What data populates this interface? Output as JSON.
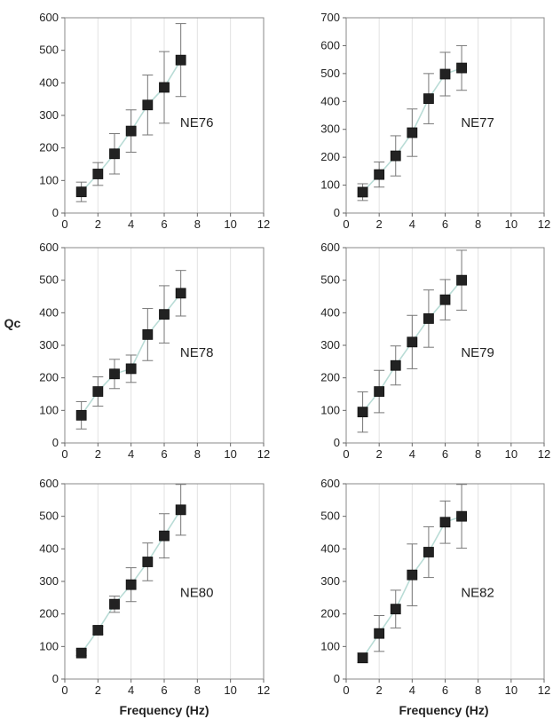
{
  "y_axis_label": "Qc",
  "x_axis_label": "Frequency  (Hz)",
  "chart_data": [
    {
      "type": "scatter",
      "label": "NE76",
      "xlim": [
        0,
        12
      ],
      "ylim": [
        0,
        600
      ],
      "xticks": [
        0,
        2,
        4,
        6,
        8,
        10,
        12
      ],
      "yticks": [
        0,
        100,
        200,
        300,
        400,
        500,
        600
      ],
      "x": [
        1,
        2,
        3,
        4,
        5,
        6,
        7
      ],
      "y": [
        65,
        120,
        182,
        252,
        332,
        386,
        470
      ],
      "err": [
        30,
        35,
        62,
        65,
        92,
        110,
        112
      ]
    },
    {
      "type": "scatter",
      "label": "NE77",
      "xlim": [
        0,
        12
      ],
      "ylim": [
        0,
        700
      ],
      "xticks": [
        0,
        2,
        4,
        6,
        8,
        10,
        12
      ],
      "yticks": [
        0,
        100,
        200,
        300,
        400,
        500,
        600,
        700
      ],
      "x": [
        1,
        2,
        3,
        4,
        5,
        6,
        7
      ],
      "y": [
        75,
        138,
        205,
        288,
        410,
        498,
        520
      ],
      "err": [
        30,
        45,
        72,
        85,
        90,
        78,
        80
      ]
    },
    {
      "type": "scatter",
      "label": "NE78",
      "xlim": [
        0,
        12
      ],
      "ylim": [
        0,
        600
      ],
      "xticks": [
        0,
        2,
        4,
        6,
        8,
        10,
        12
      ],
      "yticks": [
        0,
        100,
        200,
        300,
        400,
        500,
        600
      ],
      "x": [
        1,
        2,
        3,
        4,
        5,
        6,
        7
      ],
      "y": [
        85,
        158,
        212,
        228,
        333,
        395,
        460
      ],
      "err": [
        42,
        45,
        45,
        42,
        80,
        88,
        70
      ]
    },
    {
      "type": "scatter",
      "label": "NE79",
      "xlim": [
        0,
        12
      ],
      "ylim": [
        0,
        600
      ],
      "xticks": [
        0,
        2,
        4,
        6,
        8,
        10,
        12
      ],
      "yticks": [
        0,
        100,
        200,
        300,
        400,
        500,
        600
      ],
      "x": [
        1,
        2,
        3,
        4,
        5,
        6,
        7
      ],
      "y": [
        95,
        158,
        238,
        310,
        382,
        440,
        500
      ],
      "err": [
        62,
        65,
        60,
        82,
        88,
        62,
        92
      ]
    },
    {
      "type": "scatter",
      "label": "NE80",
      "xlim": [
        0,
        12
      ],
      "ylim": [
        0,
        600
      ],
      "xticks": [
        0,
        2,
        4,
        6,
        8,
        10,
        12
      ],
      "yticks": [
        0,
        100,
        200,
        300,
        400,
        500,
        600
      ],
      "x": [
        1,
        2,
        3,
        4,
        5,
        6,
        7
      ],
      "y": [
        80,
        150,
        230,
        290,
        360,
        440,
        520
      ],
      "err": [
        8,
        12,
        25,
        52,
        58,
        68,
        78
      ]
    },
    {
      "type": "scatter",
      "label": "NE82",
      "xlim": [
        0,
        12
      ],
      "ylim": [
        0,
        600
      ],
      "xticks": [
        0,
        2,
        4,
        6,
        8,
        10,
        12
      ],
      "yticks": [
        0,
        100,
        200,
        300,
        400,
        500,
        600
      ],
      "x": [
        1,
        2,
        3,
        4,
        5,
        6,
        7
      ],
      "y": [
        65,
        140,
        215,
        320,
        390,
        482,
        500
      ],
      "err": [
        15,
        55,
        58,
        95,
        78,
        65,
        98
      ]
    }
  ]
}
